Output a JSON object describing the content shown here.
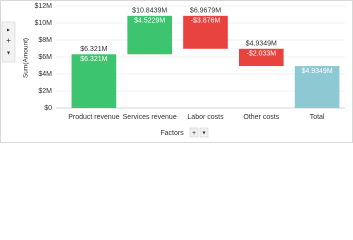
{
  "chart_data": {
    "type": "waterfall",
    "y_label": "Sum(Amount)",
    "x_label": "Factors",
    "categories": [
      "Product revenue",
      "Services revenue",
      "Labor costs",
      "Other costs",
      "Total"
    ],
    "values": [
      6.321,
      4.5229,
      -3.876,
      -2.033,
      4.9349
    ],
    "value_labels": [
      "$6.321M",
      "$4.5229M",
      "-$3.876M",
      "-$2.033M",
      "$4.9349M"
    ],
    "cumulative_labels": [
      "$6.321M",
      "$10.8439M",
      "$6.9679M",
      "$4.9349M",
      null
    ],
    "is_total": [
      false,
      false,
      false,
      false,
      true
    ],
    "colors": {
      "increase": "#3dc46e",
      "decrease": "#e8433f",
      "total": "#8cc9d3"
    },
    "ylim": [
      0,
      12
    ],
    "yticks": [
      {
        "value": 0,
        "label": "$0"
      },
      {
        "value": 2,
        "label": "$2M"
      },
      {
        "value": 4,
        "label": "$4M"
      },
      {
        "value": 6,
        "label": "$6M"
      },
      {
        "value": 8,
        "label": "$8M"
      },
      {
        "value": 10,
        "label": "$10M"
      },
      {
        "value": 12,
        "label": "$12M"
      }
    ],
    "grid": true
  }
}
